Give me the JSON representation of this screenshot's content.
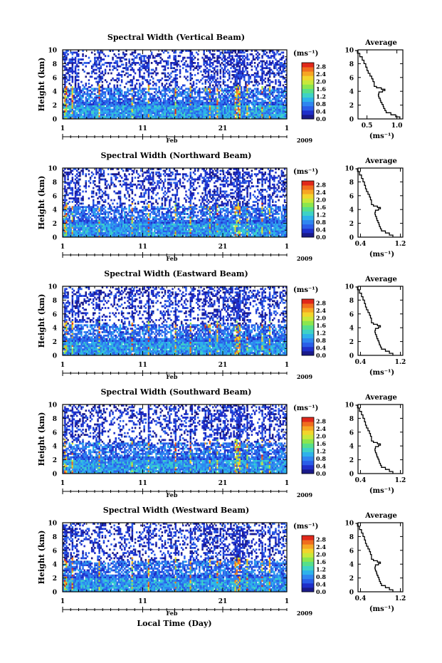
{
  "chart_data": {
    "type": "heatmap",
    "colorbar": {
      "unit": "(ms⁻¹)",
      "ticks": [
        "0.0",
        "0.4",
        "0.8",
        "1.2",
        "1.6",
        "2.0",
        "2.4",
        "2.8"
      ],
      "range": [
        0,
        3.0
      ],
      "colors": [
        "#1a1a8a",
        "#1f2fc9",
        "#2a5ee8",
        "#2f86f0",
        "#2eb2ea",
        "#3ed2c6",
        "#56df8a",
        "#8be64e",
        "#c8e83a",
        "#f2d52c",
        "#f6a623",
        "#f06d1e",
        "#e0281a"
      ]
    },
    "x_axis": {
      "ticks": [
        "1",
        "11",
        "21",
        "1"
      ],
      "month": "Feb",
      "year": "2009",
      "label": "Local Time (Day)",
      "range_days": [
        1,
        29
      ]
    },
    "y_axis": {
      "label": "Height (km)",
      "ticks": [
        "0",
        "2",
        "4",
        "6",
        "8",
        "10"
      ],
      "range": [
        0,
        10
      ]
    },
    "avg_ylabel_ticks": [
      "0",
      "2",
      "4",
      "6",
      "8",
      "10"
    ],
    "avg_xlabel": "(ms⁻¹)",
    "avg_title": "Average",
    "average_profile_points": [
      [
        0.0,
        1.05
      ],
      [
        0.3,
        0.98
      ],
      [
        0.6,
        0.9
      ],
      [
        0.9,
        0.82
      ],
      [
        1.2,
        0.8
      ],
      [
        1.5,
        0.78
      ],
      [
        1.8,
        0.77
      ],
      [
        2.1,
        0.75
      ],
      [
        2.4,
        0.73
      ],
      [
        2.7,
        0.72
      ],
      [
        3.0,
        0.7
      ],
      [
        3.3,
        0.69
      ],
      [
        3.6,
        0.7
      ],
      [
        3.9,
        0.76
      ],
      [
        4.1,
        0.8
      ],
      [
        4.3,
        0.74
      ],
      [
        4.5,
        0.66
      ],
      [
        4.7,
        0.62
      ],
      [
        5.0,
        0.62
      ],
      [
        5.4,
        0.6
      ],
      [
        5.8,
        0.58
      ],
      [
        6.2,
        0.55
      ],
      [
        6.6,
        0.52
      ],
      [
        7.0,
        0.5
      ],
      [
        7.5,
        0.48
      ],
      [
        8.0,
        0.45
      ],
      [
        8.5,
        0.42
      ],
      [
        9.0,
        0.38
      ],
      [
        9.5,
        0.34
      ],
      [
        9.9,
        0.3
      ]
    ],
    "panels": [
      {
        "title": "Spectral Width (Vertical Beam)",
        "avg_ticks": [
          "0.5",
          "1.0"
        ],
        "avg_range": [
          0.35,
          1.1
        ]
      },
      {
        "title": "Spectral Width (Northward Beam)",
        "avg_ticks": [
          "0.4",
          "1.2"
        ],
        "avg_range": [
          0.35,
          1.25
        ]
      },
      {
        "title": "Spectral Width (Eastward Beam)",
        "avg_ticks": [
          "0.4",
          "1.2"
        ],
        "avg_range": [
          0.35,
          1.25
        ]
      },
      {
        "title": "Spectral Width (Southward Beam)",
        "avg_ticks": [
          "0.4",
          "1.2"
        ],
        "avg_range": [
          0.35,
          1.25
        ]
      },
      {
        "title": "Spectral Width (Westward Beam)",
        "avg_ticks": [
          "0.4",
          "1.2"
        ],
        "avg_range": [
          0.35,
          1.25
        ]
      }
    ]
  }
}
